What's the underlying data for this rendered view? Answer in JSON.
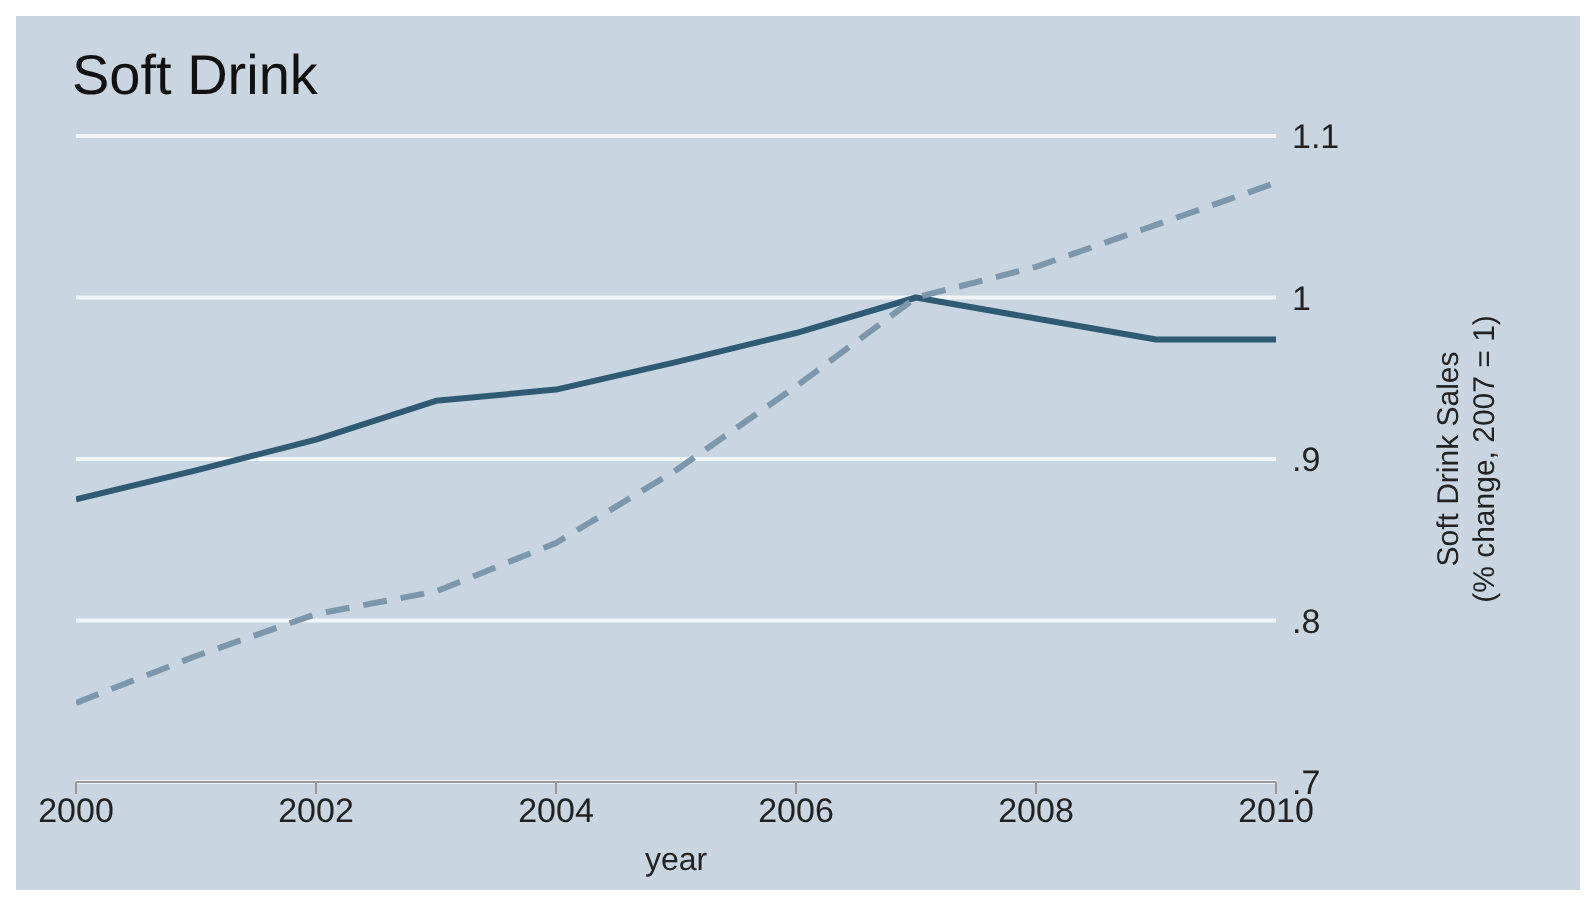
{
  "chart_data": {
    "type": "line",
    "title": "Soft Drink",
    "xlabel": "year",
    "ylabel": "Soft Drink Sales\n(% change, 2007 = 1)",
    "x": [
      2000,
      2001,
      2002,
      2003,
      2004,
      2005,
      2006,
      2007,
      2008,
      2009,
      2010
    ],
    "series": [
      {
        "color": "#2e5a74",
        "line_style": "solid",
        "values": [
          0.875,
          0.893,
          0.912,
          0.936,
          0.943,
          0.96,
          0.978,
          1.0,
          0.987,
          0.974,
          0.974
        ]
      },
      {
        "color": "#7c97ab",
        "line_style": "dashed",
        "values": [
          0.749,
          0.778,
          0.804,
          0.818,
          0.848,
          0.893,
          0.945,
          1.0,
          1.019,
          1.045,
          1.071
        ]
      }
    ],
    "xlim": [
      2000,
      2010
    ],
    "xticks": [
      2000,
      2002,
      2004,
      2006,
      2008,
      2010
    ],
    "ylim": [
      0.7,
      1.1
    ],
    "yticks": [
      {
        "value": 0.7,
        "label": ".7"
      },
      {
        "value": 0.8,
        "label": ".8"
      },
      {
        "value": 0.9,
        "label": ".9"
      },
      {
        "value": 1,
        "label": "1"
      },
      {
        "value": 1.1,
        "label": "1.1"
      }
    ],
    "grid": "y",
    "legend": false,
    "marker": "none"
  }
}
